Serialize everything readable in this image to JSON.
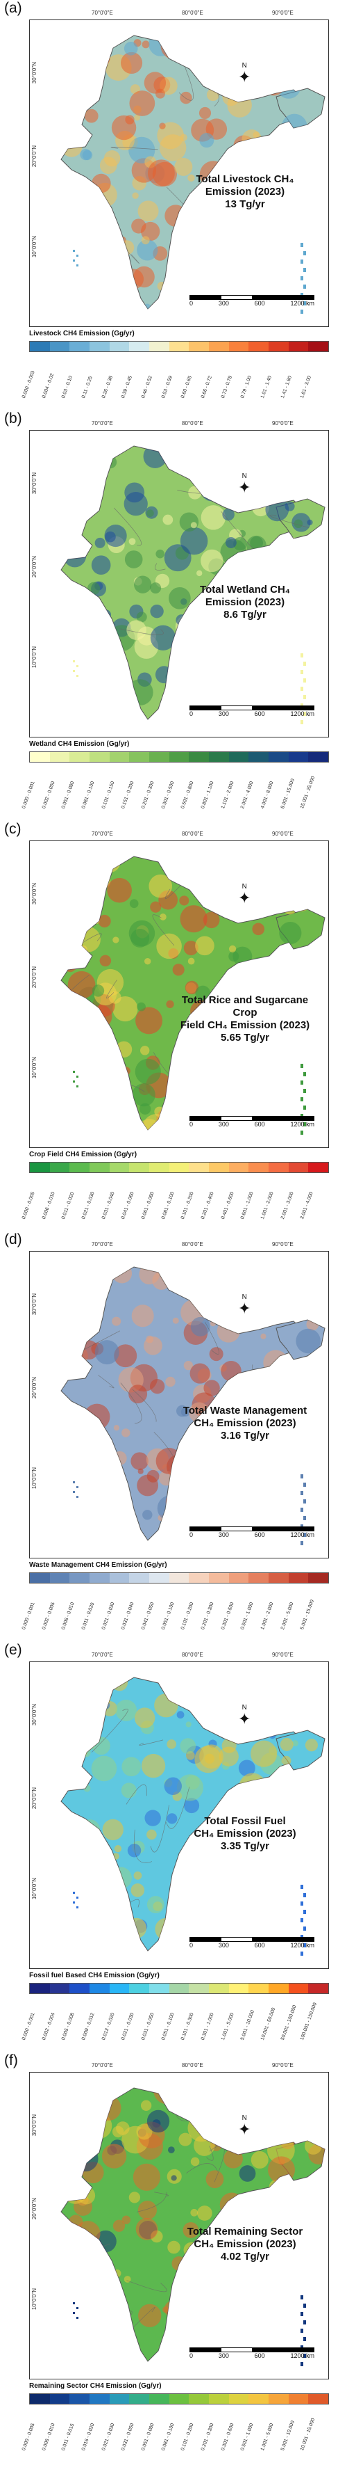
{
  "panels": [
    {
      "label": "(a)",
      "lon_ticks": [
        "70°0'0\"E",
        "80°0'0\"E",
        "90°0'0\"E"
      ],
      "lat_ticks": [
        "30°0'0\"N",
        "20°0'0\"N",
        "10°0'0\"N"
      ],
      "north": "N",
      "total_line1": "Total Livestock CH₄",
      "total_line2": "Emission (2023)",
      "total_line3": "13 Tg/yr",
      "scale": [
        "0",
        "300",
        "600",
        "1200 km"
      ],
      "legend_title": "Livestock CH4 Emission (Gg/yr)",
      "legend_colors": [
        "#2c7bb6",
        "#4a95c6",
        "#6aaed6",
        "#8cc4de",
        "#b0d8e6",
        "#d6ecf0",
        "#f2f2d0",
        "#fee090",
        "#fdc36a",
        "#fca350",
        "#f9813c",
        "#f1602d",
        "#de3d22",
        "#c4201b",
        "#a50f15"
      ],
      "legend_labels": [
        "0.000 - 0.003",
        "0.004 - 0.02",
        "0.03 - 0.10",
        "0.11 - 0.25",
        "0.26 - 0.38",
        "0.39 - 0.45",
        "0.46 - 0.52",
        "0.53 - 0.59",
        "0.60 - 0.65",
        "0.66 - 0.72",
        "0.73 - 0.78",
        "0.79 - 1.00",
        "1.01 - 1.40",
        "1.41 - 1.80",
        "1.81 - 3.00"
      ],
      "colors": {
        "base": "#9fc7c0",
        "hot": "#e8602e",
        "warm": "#f3c05a",
        "cool": "#5fa8cf"
      }
    },
    {
      "label": "(b)",
      "lon_ticks": [
        "70°0'0\"E",
        "80°0'0\"E",
        "90°0'0\"E"
      ],
      "lat_ticks": [
        "30°0'0\"N",
        "20°0'0\"N",
        "10°0'0\"N"
      ],
      "north": "N",
      "total_line1": "Total Wetland CH₄",
      "total_line2": "Emission (2023)",
      "total_line3": "8.6 Tg/yr",
      "scale": [
        "0",
        "300",
        "600",
        "1200 km"
      ],
      "legend_title": "Wetland CH4 Emission (Gg/yr)",
      "legend_colors": [
        "#ffffcc",
        "#eef5b0",
        "#d9ec95",
        "#bfe080",
        "#a3d26e",
        "#86c35e",
        "#6ab150",
        "#4f9e46",
        "#3a8a42",
        "#2a7a4a",
        "#1f6a5a",
        "#1c5a72",
        "#1a4a86",
        "#183a8c",
        "#152a7a"
      ],
      "legend_labels": [
        "0.000 - 0.001",
        "0.002 - 0.050",
        "0.051 - 0.080",
        "0.081 - 0.100",
        "0.101 - 0.150",
        "0.151 - 0.200",
        "0.201 - 0.300",
        "0.301 - 0.500",
        "0.501 - 0.800",
        "0.801 - 1.100",
        "1.101 - 2.000",
        "2.001 - 4.000",
        "4.001 - 8.000",
        "8.001 - 15.000",
        "15.001 - 25.000"
      ],
      "colors": {
        "base": "#93c96a",
        "hot": "#1f4e9a",
        "warm": "#3f8f45",
        "cool": "#f4f3a0"
      }
    },
    {
      "label": "(c)",
      "lon_ticks": [
        "70°0'0\"E",
        "80°0'0\"E",
        "90°0'0\"E"
      ],
      "lat_ticks": [
        "30°0'0\"N",
        "20°0'0\"N",
        "10°0'0\"N"
      ],
      "north": "N",
      "total_line1": "Total Rice and Sugarcane Crop",
      "total_line2": "Field CH₄ Emission (2023)",
      "total_line3": "5.65 Tg/yr",
      "scale": [
        "0",
        "300",
        "600",
        "1200 km"
      ],
      "legend_title": "Crop Field CH4 Emission (Gg/yr)",
      "legend_colors": [
        "#1a9641",
        "#3aa84a",
        "#5cbb4f",
        "#80c95a",
        "#a6d96a",
        "#c6e46e",
        "#e0ec72",
        "#f4f078",
        "#fee08b",
        "#fdc967",
        "#fdae61",
        "#f98e4f",
        "#f46d43",
        "#e34a33",
        "#d7191c"
      ],
      "legend_labels": [
        "0.000 - 0.005",
        "0.006 - 0.010",
        "0.011 - 0.020",
        "0.021 - 0.030",
        "0.031 - 0.040",
        "0.041 - 0.060",
        "0.061 - 0.080",
        "0.081 - 0.100",
        "0.101 - 0.200",
        "0.201 - 0.400",
        "0.401 - 0.600",
        "0.601 - 1.000",
        "1.001 - 2.000",
        "2.001 - 3.000",
        "3.001 - 4.000"
      ],
      "colors": {
        "base": "#6fb94a",
        "hot": "#e0452a",
        "warm": "#f3d24a",
        "cool": "#3f9a3e"
      }
    },
    {
      "label": "(d)",
      "lon_ticks": [
        "70°0'0\"E",
        "80°0'0\"E",
        "90°0'0\"E"
      ],
      "lat_ticks": [
        "30°0'0\"N",
        "20°0'0\"N",
        "10°0'0\"N"
      ],
      "north": "N",
      "total_line1": "Total Waste Management",
      "total_line2": "CH₄ Emission (2023)",
      "total_line3": "3.16 Tg/yr",
      "scale": [
        "0",
        "300",
        "600",
        "1200 km"
      ],
      "legend_title": "Waste Management CH4 Emission (Gg/yr)",
      "legend_colors": [
        "#4a6fa5",
        "#5f83b4",
        "#7797c2",
        "#90abcf",
        "#aac0db",
        "#c4d4e6",
        "#dde6ef",
        "#f2e6dc",
        "#f6d2bc",
        "#f4bb9c",
        "#ef9f7c",
        "#e5805f",
        "#d65f44",
        "#c2402f",
        "#a52a22"
      ],
      "legend_labels": [
        "0.000 - 0.001",
        "0.002 - 0.005",
        "0.006 - 0.010",
        "0.011 - 0.020",
        "0.021 - 0.030",
        "0.031 - 0.040",
        "0.041 - 0.050",
        "0.051 - 0.100",
        "0.101 - 0.200",
        "0.201 - 0.300",
        "0.301 - 0.500",
        "0.501 - 1.000",
        "1.001 - 2.000",
        "2.001 - 5.000",
        "5.001 - 15.000"
      ],
      "colors": {
        "base": "#90aacb",
        "hot": "#c4452e",
        "warm": "#e6a07e",
        "cool": "#5b7fb0"
      }
    },
    {
      "label": "(e)",
      "lon_ticks": [
        "70°0'0\"E",
        "80°0'0\"E",
        "90°0'0\"E"
      ],
      "lat_ticks": [
        "30°0'0\"N",
        "20°0'0\"N",
        "10°0'0\"N"
      ],
      "north": "N",
      "total_line1": "Total Fossil Fuel",
      "total_line2": "CH₄ Emission (2023)",
      "total_line3": "3.35 Tg/yr",
      "scale": [
        "0",
        "300",
        "600",
        "1200 km"
      ],
      "legend_title": "Fossil fuel Based CH4 Emission (Gg/yr)",
      "legend_colors": [
        "#1a237e",
        "#283593",
        "#1e50c8",
        "#1e88e5",
        "#29b6f6",
        "#4dd0e1",
        "#80deea",
        "#a5d6a7",
        "#c5e1a5",
        "#dce775",
        "#fff176",
        "#ffd54f",
        "#ffa726",
        "#f4511e",
        "#c62828"
      ],
      "legend_labels": [
        "0.000 - 0.001",
        "0.002 - 0.004",
        "0.005 - 0.008",
        "0.009 - 0.012",
        "0.013 - 0.020",
        "0.021 - 0.030",
        "0.031 - 0.050",
        "0.051 - 0.100",
        "0.101 - 0.300",
        "0.301 - 1.000",
        "1.001 - 5.000",
        "5.001 - 10.000",
        "10.001 - 50.000",
        "50.001 - 100.000",
        "100.001 - 150.000"
      ],
      "colors": {
        "base": "#5fc8e0",
        "hot": "#e8c33a",
        "warm": "#8fd18c",
        "cool": "#2f6fd8"
      }
    },
    {
      "label": "(f)",
      "lon_ticks": [
        "70°0'0\"E",
        "80°0'0\"E",
        "90°0'0\"E"
      ],
      "lat_ticks": [
        "30°0'0\"N",
        "20°0'0\"N",
        "10°0'0\"N"
      ],
      "north": "N",
      "total_line1": "Total Remaining Sector",
      "total_line2": "CH₄ Emission (2023)",
      "total_line3": "4.02 Tg/yr",
      "scale": [
        "0",
        "300",
        "600",
        "1200 km"
      ],
      "legend_title": "Remaining Sector CH4 Emission (Gg/yr)",
      "legend_colors": [
        "#0d2a6b",
        "#123c8a",
        "#1a56a8",
        "#2178c2",
        "#2a9bb8",
        "#33ad8a",
        "#46b65a",
        "#6cc040",
        "#95c83a",
        "#bbd03c",
        "#ddd23f",
        "#f3c540",
        "#f6a53a",
        "#f08031",
        "#e05a2a"
      ],
      "legend_labels": [
        "0.000 - 0.005",
        "0.006 - 0.010",
        "0.011 - 0.015",
        "0.016 - 0.020",
        "0.021 - 0.030",
        "0.031 - 0.050",
        "0.051 - 0.080",
        "0.081 - 0.100",
        "0.101 - 0.200",
        "0.201 - 0.300",
        "0.301 - 0.500",
        "0.501 - 1.000",
        "1.001 - 5.000",
        "5.001 - 10.000",
        "10.001 - 15.000"
      ],
      "colors": {
        "base": "#5cb84f",
        "hot": "#e06a2c",
        "warm": "#e8c83c",
        "cool": "#12377e"
      }
    }
  ]
}
